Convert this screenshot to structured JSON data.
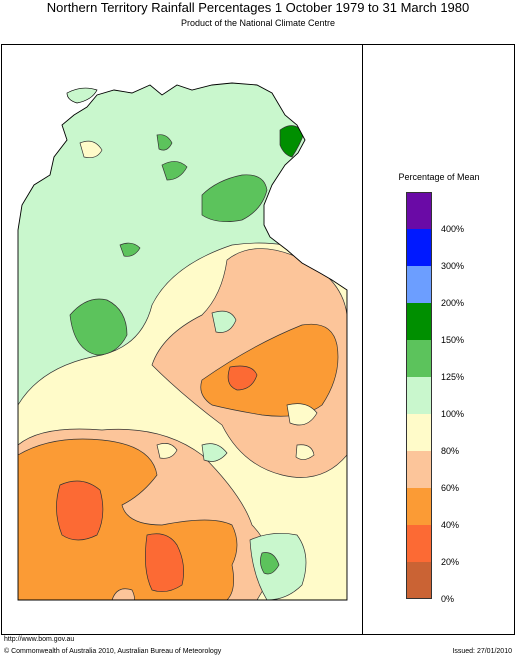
{
  "header": {
    "title": "Northern Territory Rainfall Percentages 1 October 1979 to 31 March 1980",
    "subtitle": "Product of the National Climate Centre"
  },
  "legend": {
    "title": "Percentage of Mean",
    "bands": [
      {
        "color": "#6a0aa6",
        "label": ""
      },
      {
        "color": "#0019ff",
        "label": "400%"
      },
      {
        "color": "#6c9eff",
        "label": "300%"
      },
      {
        "color": "#008f00",
        "label": "200%"
      },
      {
        "color": "#5cc35c",
        "label": "150%"
      },
      {
        "color": "#c9f7cd",
        "label": "125%"
      },
      {
        "color": "#fffbc9",
        "label": "100%"
      },
      {
        "color": "#fcc59a",
        "label": "80%"
      },
      {
        "color": "#fb9b35",
        "label": "60%"
      },
      {
        "color": "#fc6a34",
        "label": "40%"
      },
      {
        "color": "#ca6334",
        "label": "20%"
      }
    ],
    "bottom_label": "0%"
  },
  "footer": {
    "url": "http://www.bom.gov.au",
    "copyright": "© Commonwealth of Australia 2010, Australian Bureau of Meteorology",
    "issued": "Issued: 27/01/2010"
  }
}
